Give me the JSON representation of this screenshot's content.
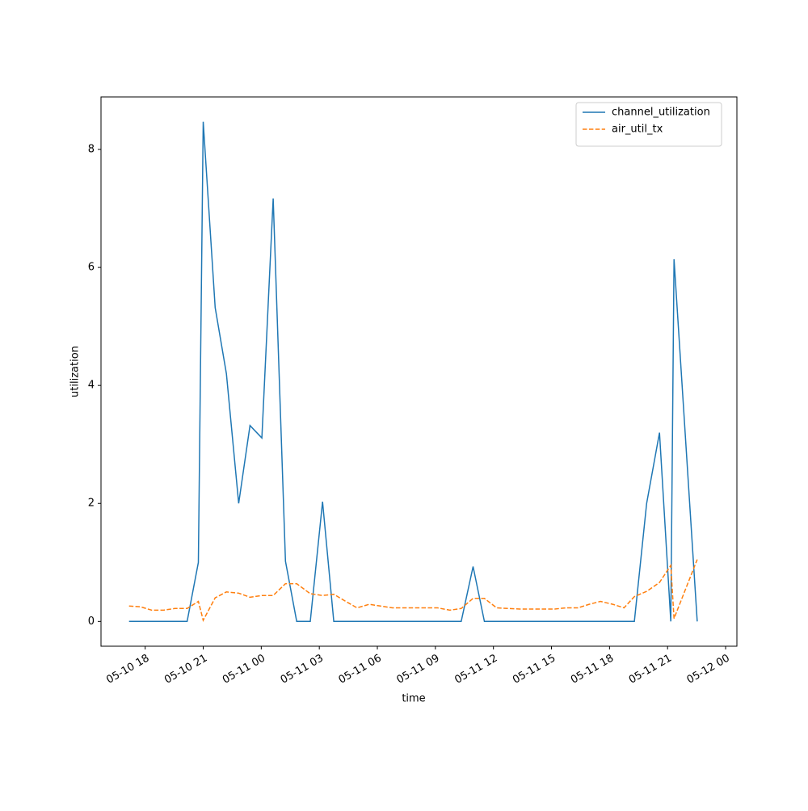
{
  "chart_data": {
    "type": "line",
    "x_label": "time",
    "y_label": "utilization",
    "x": [
      "05-10 17:10",
      "05-10 17:45",
      "05-10 18:20",
      "05-10 18:57",
      "05-10 19:32",
      "05-10 20:10",
      "05-10 20:45",
      "05-10 21:00",
      "05-10 21:37",
      "05-10 22:12",
      "05-10 22:50",
      "05-10 23:25",
      "05-11 00:02",
      "05-11 00:37",
      "05-11 01:15",
      "05-11 01:50",
      "05-11 02:32",
      "05-11 03:10",
      "05-11 03:45",
      "05-11 04:22",
      "05-11 04:57",
      "05-11 05:35",
      "05-11 06:10",
      "05-11 06:47",
      "05-11 07:22",
      "05-11 07:57",
      "05-11 08:32",
      "05-11 09:07",
      "05-11 09:45",
      "05-11 10:20",
      "05-11 10:57",
      "05-11 11:32",
      "05-11 12:10",
      "05-11 12:45",
      "05-11 13:22",
      "05-11 13:57",
      "05-11 14:32",
      "05-11 15:10",
      "05-11 15:45",
      "05-11 16:22",
      "05-11 16:57",
      "05-11 17:32",
      "05-11 18:10",
      "05-11 18:45",
      "05-11 19:17",
      "05-11 19:55",
      "05-11 20:35",
      "05-11 21:10",
      "05-11 21:20",
      "05-11 22:32"
    ],
    "series": [
      {
        "name": "channel_utilization",
        "color": "#1f77b4",
        "dash": "solid",
        "values": [
          0,
          0,
          0,
          0,
          0,
          0,
          1.0,
          8.47,
          5.32,
          4.2,
          2.0,
          3.32,
          3.11,
          7.17,
          1.02,
          0,
          0,
          2.03,
          0,
          0,
          0,
          0,
          0,
          0,
          0,
          0,
          0,
          0,
          0,
          0,
          0.93,
          0,
          0,
          0,
          0,
          0,
          0,
          0,
          0,
          0,
          0,
          0,
          0,
          0,
          0,
          2.0,
          3.2,
          0,
          6.14,
          0
        ]
      },
      {
        "name": "air_util_tx",
        "color": "#ff7f0e",
        "dash": "dashed",
        "values": [
          0.26,
          0.25,
          0.19,
          0.19,
          0.22,
          0.22,
          0.34,
          0.02,
          0.4,
          0.5,
          0.48,
          0.41,
          0.44,
          0.44,
          0.64,
          0.64,
          0.47,
          0.44,
          0.46,
          0.34,
          0.23,
          0.29,
          0.26,
          0.23,
          0.23,
          0.23,
          0.23,
          0.23,
          0.19,
          0.22,
          0.39,
          0.39,
          0.23,
          0.22,
          0.21,
          0.21,
          0.21,
          0.21,
          0.23,
          0.23,
          0.29,
          0.34,
          0.29,
          0.23,
          0.42,
          0.51,
          0.66,
          0.95,
          0.05,
          1.05
        ]
      }
    ],
    "xlim": [
      "05-10 15:43",
      "05-12 00:35"
    ],
    "xticks": [
      "05-10 18",
      "05-10 21",
      "05-11 00",
      "05-11 03",
      "05-11 06",
      "05-11 09",
      "05-11 12",
      "05-11 15",
      "05-11 18",
      "05-11 21",
      "05-12 00"
    ],
    "ylim": [
      -0.42,
      8.89
    ],
    "yticks": [
      0,
      2,
      4,
      6,
      8
    ],
    "legend": "upper right"
  }
}
